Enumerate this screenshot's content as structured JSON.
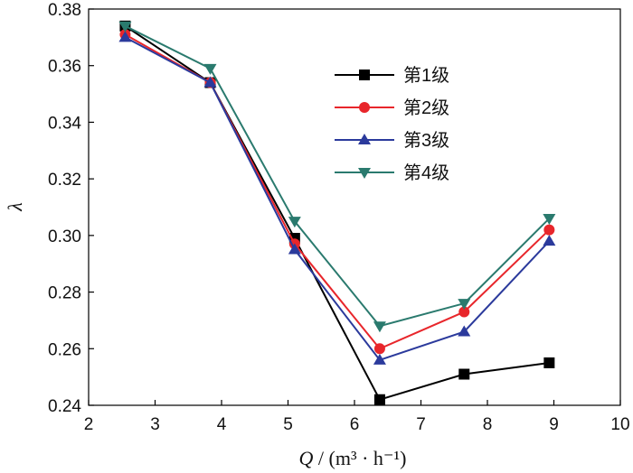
{
  "chart_data": {
    "type": "line",
    "title": "",
    "xlabel_var": "Q",
    "xlabel_unit": "(m³ · h⁻¹)",
    "ylabel": "λ",
    "xlim": [
      2,
      10
    ],
    "ylim": [
      0.24,
      0.38
    ],
    "xticks": [
      2,
      3,
      4,
      5,
      6,
      7,
      8,
      9,
      10
    ],
    "yticks": [
      "0.24",
      "0.26",
      "0.28",
      "0.30",
      "0.32",
      "0.34",
      "0.36",
      "0.38"
    ],
    "x": [
      2.55,
      3.83,
      5.1,
      6.38,
      7.65,
      8.93
    ],
    "legend_position": "top-right",
    "grid": false,
    "series": [
      {
        "name": "第1级",
        "color": "#000000",
        "marker": "square",
        "values": [
          0.374,
          0.354,
          0.299,
          0.242,
          0.251,
          0.255
        ]
      },
      {
        "name": "第2级",
        "color": "#e8262b",
        "marker": "circle",
        "values": [
          0.371,
          0.354,
          0.297,
          0.26,
          0.273,
          0.302
        ]
      },
      {
        "name": "第3级",
        "color": "#2b3a9c",
        "marker": "triangle-up",
        "values": [
          0.37,
          0.354,
          0.295,
          0.256,
          0.266,
          0.298
        ]
      },
      {
        "name": "第4级",
        "color": "#2a7a6e",
        "marker": "triangle-down",
        "values": [
          0.374,
          0.359,
          0.305,
          0.268,
          0.276,
          0.306
        ]
      }
    ]
  }
}
